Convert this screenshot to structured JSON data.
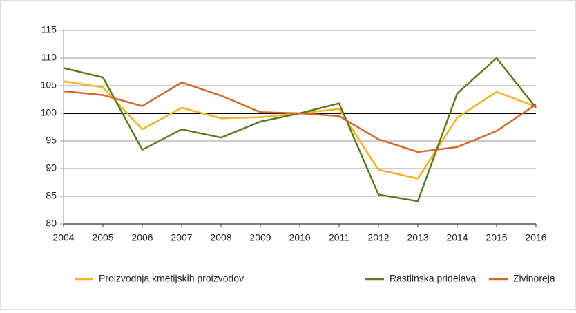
{
  "chart_data": {
    "type": "line",
    "x": [
      2004,
      2005,
      2006,
      2007,
      2008,
      2009,
      2010,
      2011,
      2012,
      2013,
      2014,
      2015,
      2016
    ],
    "xlim": [
      2004,
      2016
    ],
    "xticks": [
      2004,
      2005,
      2006,
      2007,
      2008,
      2009,
      2010,
      2011,
      2012,
      2013,
      2014,
      2015,
      2016
    ],
    "ylim": [
      80,
      115
    ],
    "yticks": [
      80,
      85,
      90,
      95,
      100,
      105,
      110,
      115
    ],
    "grid": true,
    "reference_line": 100,
    "legend": "bottom",
    "series": [
      {
        "name": "Proizvodnja kmetijskih proizvodov",
        "color": "#f0b323",
        "values": [
          105.8,
          104.7,
          97.1,
          101.0,
          99.1,
          99.3,
          100.0,
          100.8,
          89.8,
          88.2,
          99.2,
          103.9,
          101.2
        ]
      },
      {
        "name": "Rastlinska pridelava",
        "color": "#5a7a1e",
        "values": [
          108.2,
          106.5,
          93.4,
          97.1,
          95.6,
          98.5,
          100.0,
          101.8,
          85.3,
          84.1,
          103.6,
          110.0,
          101.0
        ]
      },
      {
        "name": "Živinoreja",
        "color": "#d4662a",
        "values": [
          104.0,
          103.3,
          101.3,
          105.6,
          103.2,
          100.2,
          100.0,
          99.5,
          95.3,
          93.0,
          93.9,
          96.8,
          101.6
        ]
      }
    ]
  }
}
